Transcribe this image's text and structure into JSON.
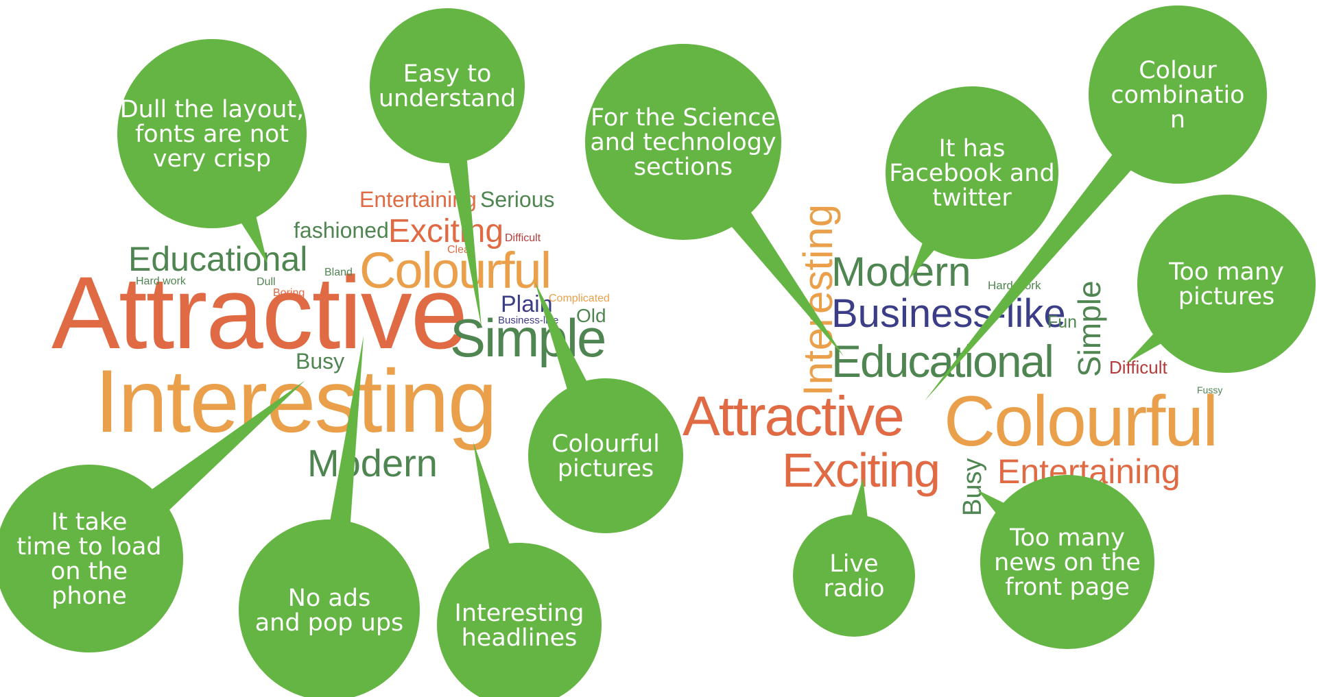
{
  "palette": {
    "bubble": "#64b543",
    "orange_red": "#e06a43",
    "light_orange": "#eaa04b",
    "dark_green": "#4f8551",
    "navy": "#3b3e86",
    "dark_red": "#b53b3b",
    "bubble_text": "#ffffff"
  },
  "left_cloud": {
    "words": [
      "Attractive",
      "Interesting",
      "Simple",
      "Colourful",
      "Modern",
      "Educational",
      "Exciting",
      "Entertaining",
      "Serious",
      "fashioned",
      "Busy",
      "Plain",
      "Old",
      "Difficult",
      "Clear",
      "Complicated",
      "Business-like",
      "Hard work",
      "Dull",
      "Boring",
      "Bland"
    ]
  },
  "right_cloud": {
    "words": [
      "Colourful",
      "Attractive",
      "Exciting",
      "Educational",
      "Business-like",
      "Modern",
      "Interesting",
      "Simple",
      "Entertaining",
      "Busy",
      "Difficult",
      "Fun",
      "Hard work",
      "Fussy"
    ]
  },
  "bubbles": [
    {
      "lines": [
        "Dull the layout,",
        "fonts are not",
        "very crisp"
      ]
    },
    {
      "lines": [
        "Easy to",
        "understand"
      ]
    },
    {
      "lines": [
        "It take",
        "time to load",
        "on the",
        "phone"
      ]
    },
    {
      "lines": [
        "No ads",
        "and pop ups"
      ]
    },
    {
      "lines": [
        "Interesting",
        "headlines"
      ]
    },
    {
      "lines": [
        "Colourful",
        "pictures"
      ]
    },
    {
      "lines": [
        "For the Science",
        "and technology",
        "sections"
      ]
    },
    {
      "lines": [
        "It has",
        "Facebook and",
        "twitter"
      ]
    },
    {
      "lines": [
        "Colour",
        "combinatio",
        "n"
      ]
    },
    {
      "lines": [
        "Too many",
        "pictures"
      ]
    },
    {
      "lines": [
        "Live",
        "radio"
      ]
    },
    {
      "lines": [
        "Too many",
        "news on the",
        "front page"
      ]
    }
  ]
}
